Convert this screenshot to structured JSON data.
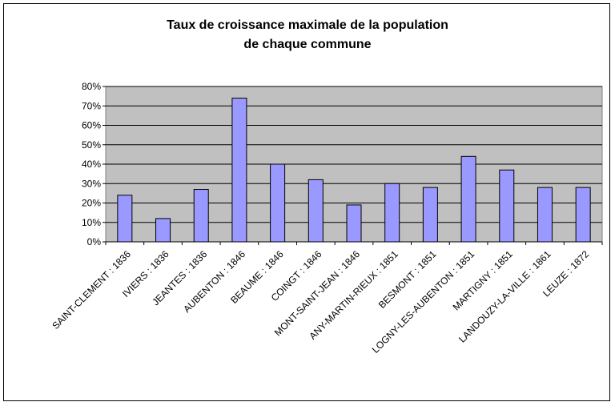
{
  "chart_data": {
    "type": "bar",
    "title_lines": [
      "Taux de croissance maximale de la population",
      "de chaque commune"
    ],
    "categories": [
      "SAINT-CLEMENT : 1836",
      "IVIERS : 1836",
      "JEANTES : 1836",
      "AUBENTON : 1846",
      "BEAUME : 1846",
      "COINGT : 1846",
      "MONT-SAINT-JEAN : 1846",
      "ANY-MARTIN-RIEUX : 1851",
      "BESMONT : 1851",
      "LOGNY-LES-AUBENTON : 1851",
      "MARTIGNY : 1851",
      "LANDOUZY-LA-VILLE : 1861",
      "LEUZE : 1872"
    ],
    "values": [
      0.24,
      0.12,
      0.27,
      0.74,
      0.4,
      0.32,
      0.19,
      0.3,
      0.28,
      0.44,
      0.37,
      0.28,
      0.28
    ],
    "yticks": [
      "0%",
      "10%",
      "20%",
      "30%",
      "40%",
      "50%",
      "60%",
      "70%",
      "80%"
    ],
    "ylim": [
      0,
      0.8
    ],
    "grid": true,
    "legend": "none",
    "colors": {
      "bar_fill": "#9999ff",
      "bar_stroke": "#000000",
      "plot_bg": "#c0c0c0"
    }
  }
}
